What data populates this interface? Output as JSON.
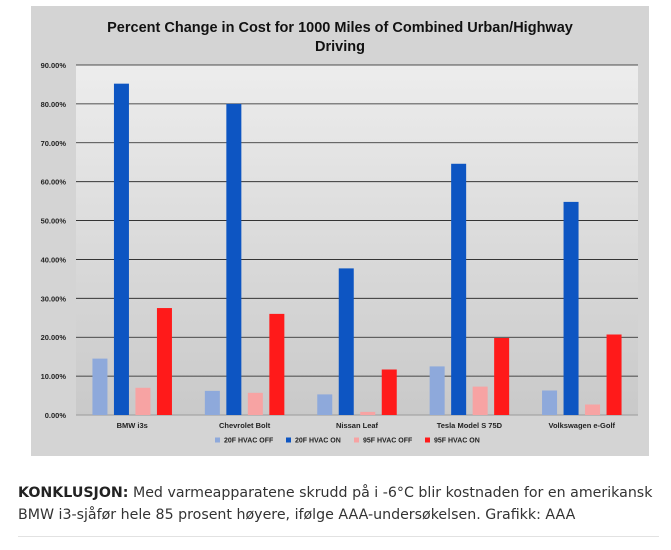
{
  "chart_data": {
    "type": "bar",
    "title_lines": [
      "Percent Change in Cost for 1000 Miles of Combined Urban/Highway",
      "Driving"
    ],
    "categories": [
      "BMW i3s",
      "Chevrolet Bolt",
      "Nissan Leaf",
      "Tesla Model S 75D",
      "Volkswagen e-Golf"
    ],
    "series": [
      {
        "name": "20F HVAC OFF",
        "values": [
          14.5,
          6.2,
          5.3,
          12.5,
          6.3
        ]
      },
      {
        "name": "20F HVAC ON",
        "values": [
          85.2,
          80.0,
          37.7,
          64.6,
          54.8
        ]
      },
      {
        "name": "95F HVAC OFF",
        "values": [
          7.0,
          5.7,
          0.8,
          7.3,
          2.7
        ]
      },
      {
        "name": "95F HVAC ON",
        "values": [
          27.5,
          26.0,
          11.7,
          19.8,
          20.7
        ]
      }
    ],
    "colors": [
      "#8ea9db",
      "#0d55c2",
      "#f7a3a3",
      "#ff1a1a"
    ],
    "ylim": [
      0,
      90
    ],
    "yticks": [
      "0.00%",
      "10.00%",
      "20.00%",
      "30.00%",
      "40.00%",
      "50.00%",
      "60.00%",
      "70.00%",
      "80.00%",
      "90.00%"
    ],
    "grid": true,
    "legend": "bottom"
  },
  "caption": {
    "lead": "KONKLUSJON:",
    "text": " Med varmeapparatene skrudd på i -6°C blir kostnaden for en amerikansk BMW i3-sjåfør hele 85 prosent høyere, ifølge AAA-undersøkelsen. Grafikk: AAA"
  }
}
